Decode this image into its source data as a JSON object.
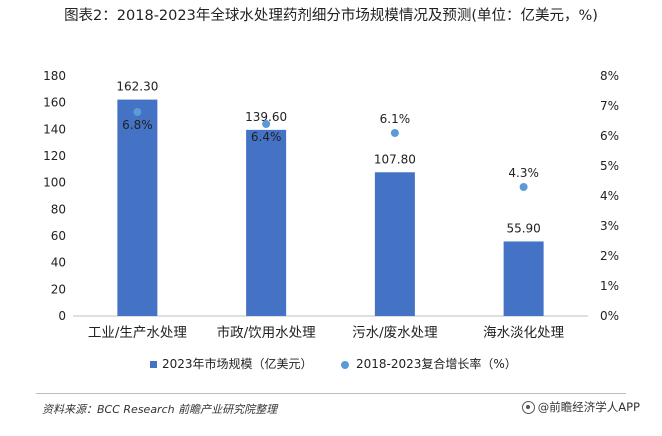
{
  "title": "图表2：2018-2023年全球水处理药剂细分市场规模情况及预测(单位：亿美元，%)",
  "source_text": "资料来源：BCC Research 前瞻产业研究院整理",
  "brand": {
    "icon": "qianzhan-logo-icon",
    "text": "@前瞻经济学人APP"
  },
  "colors": {
    "bar": "#4472c4",
    "point": "#5b9bd5",
    "axis": "#bfbfbf",
    "text": "#222222"
  },
  "chart_data": {
    "type": "bar",
    "categories": [
      "工业/生产水处理",
      "市政/饮用水处理",
      "污水/废水处理",
      "海水淡化处理"
    ],
    "series": [
      {
        "name": "2023年市场规模（亿美元）",
        "type": "bar",
        "axis": "left",
        "values": [
          162.3,
          139.6,
          107.8,
          55.9
        ],
        "labels": [
          "162.30",
          "139.60",
          "107.80",
          "55.90"
        ]
      },
      {
        "name": "2018-2023复合增长率（%）",
        "type": "scatter",
        "axis": "right",
        "values": [
          6.8,
          6.4,
          6.1,
          4.3
        ],
        "labels": [
          "6.8%",
          "6.4%",
          "6.1%",
          "4.3%"
        ]
      }
    ],
    "y_left": {
      "min": 0,
      "max": 180,
      "step": 20,
      "ticks": [
        "0",
        "20",
        "40",
        "60",
        "80",
        "100",
        "120",
        "140",
        "160",
        "180"
      ]
    },
    "y_right": {
      "min": 0,
      "max": 8,
      "step": 1,
      "ticks": [
        "0%",
        "1%",
        "2%",
        "3%",
        "4%",
        "5%",
        "6%",
        "7%",
        "8%"
      ]
    },
    "legend_position": "bottom",
    "grid": false
  }
}
